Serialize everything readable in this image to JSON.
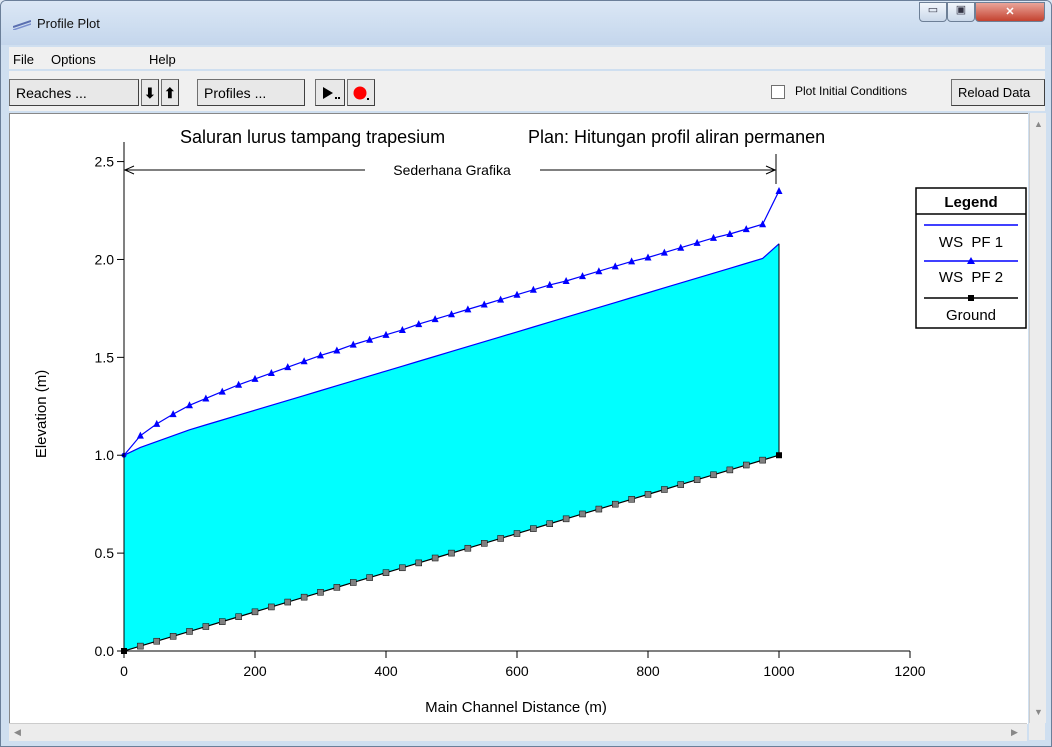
{
  "window": {
    "title": "Profile Plot",
    "minimize_symbol": "▭",
    "maximize_symbol": "▣",
    "close_symbol": "✕"
  },
  "menu": {
    "file": "File",
    "options": "Options",
    "help": "Help"
  },
  "toolbar": {
    "reaches_label": "Reaches ...",
    "down_arrow": "⬇",
    "up_arrow": "⬆",
    "profiles_label": "Profiles ...",
    "plot_initial_conditions_label": "Plot Initial Conditions",
    "plot_initial_conditions_checked": false,
    "reload_label": "Reload Data"
  },
  "chart_data": {
    "type": "line",
    "title": "Saluran lurus tampang trapesium",
    "plan_title": "Plan: Hitungan profil aliran permanen",
    "reach_label": "Sederhana Grafika",
    "reach_extent": [
      0,
      1000
    ],
    "xlabel": "Main Channel Distance (m)",
    "ylabel": "Elevation (m)",
    "xlim": [
      0,
      1200
    ],
    "ylim": [
      0,
      2.6
    ],
    "x_ticks": [
      "0",
      "200",
      "400",
      "600",
      "800",
      "1000",
      "1200"
    ],
    "y_ticks": [
      "0.0",
      "0.5",
      "1.0",
      "1.5",
      "2.0",
      "2.5"
    ],
    "legend": {
      "title": "Legend",
      "placement": "top-right",
      "entries": [
        "WS  PF 1",
        "WS  PF 2",
        "Ground"
      ]
    },
    "colors": {
      "ws": "#0000ff",
      "fill": "#00ffff",
      "ground": "#000000",
      "ground_marker": "#808080"
    },
    "x": [
      0,
      25,
      50,
      75,
      100,
      125,
      150,
      175,
      200,
      225,
      250,
      275,
      300,
      325,
      350,
      375,
      400,
      425,
      450,
      475,
      500,
      525,
      550,
      575,
      600,
      625,
      650,
      675,
      700,
      725,
      750,
      775,
      800,
      825,
      850,
      875,
      900,
      925,
      950,
      975,
      1000
    ],
    "series": [
      {
        "name": "WS  PF 1",
        "values": [
          1.0,
          1.04,
          1.07,
          1.1,
          1.13,
          1.155,
          1.18,
          1.205,
          1.23,
          1.255,
          1.28,
          1.305,
          1.33,
          1.355,
          1.38,
          1.405,
          1.43,
          1.455,
          1.48,
          1.505,
          1.53,
          1.555,
          1.58,
          1.605,
          1.63,
          1.655,
          1.68,
          1.705,
          1.73,
          1.755,
          1.78,
          1.805,
          1.83,
          1.855,
          1.88,
          1.905,
          1.93,
          1.955,
          1.98,
          2.005,
          2.08
        ]
      },
      {
        "name": "WS  PF 2",
        "values": [
          1.0,
          1.1,
          1.16,
          1.21,
          1.255,
          1.29,
          1.325,
          1.36,
          1.39,
          1.42,
          1.45,
          1.48,
          1.51,
          1.535,
          1.565,
          1.59,
          1.615,
          1.64,
          1.67,
          1.695,
          1.72,
          1.745,
          1.77,
          1.795,
          1.82,
          1.845,
          1.87,
          1.89,
          1.915,
          1.94,
          1.965,
          1.99,
          2.01,
          2.035,
          2.06,
          2.085,
          2.11,
          2.13,
          2.155,
          2.18,
          2.35
        ]
      },
      {
        "name": "Ground",
        "values": [
          0.0,
          0.025,
          0.05,
          0.075,
          0.1,
          0.125,
          0.15,
          0.175,
          0.2,
          0.225,
          0.25,
          0.275,
          0.3,
          0.325,
          0.35,
          0.375,
          0.4,
          0.425,
          0.45,
          0.475,
          0.5,
          0.525,
          0.55,
          0.575,
          0.6,
          0.625,
          0.65,
          0.675,
          0.7,
          0.725,
          0.75,
          0.775,
          0.8,
          0.825,
          0.85,
          0.875,
          0.9,
          0.925,
          0.95,
          0.975,
          1.0
        ]
      }
    ]
  }
}
